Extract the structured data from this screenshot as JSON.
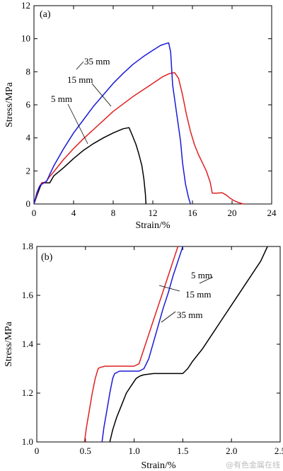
{
  "chart_data": [
    {
      "type": "line",
      "panel_label": "(a)",
      "xlabel": "Strain/%",
      "ylabel": "Stress/MPa",
      "xlim": [
        0,
        24
      ],
      "ylim": [
        0,
        12
      ],
      "xticks": [
        0,
        4,
        8,
        12,
        16,
        20,
        24
      ],
      "yticks": [
        0,
        2,
        4,
        6,
        8,
        10,
        12
      ],
      "grid": false,
      "series": [
        {
          "name": "5 mm",
          "color": "#000000",
          "x": [
            0,
            0.3,
            0.6,
            0.8,
            1.0,
            1.4,
            1.6,
            2.0,
            3.0,
            4.0,
            5.0,
            6.0,
            7.0,
            8.0,
            9.0,
            9.6,
            9.9,
            10.3,
            10.6,
            10.9,
            11.1,
            11.25,
            11.3,
            11.3
          ],
          "y": [
            0,
            0.5,
            1.0,
            1.25,
            1.28,
            1.28,
            1.28,
            1.7,
            2.2,
            2.75,
            3.25,
            3.65,
            4.0,
            4.3,
            4.55,
            4.62,
            4.2,
            3.6,
            3.0,
            2.3,
            1.5,
            0.6,
            0.1,
            0
          ]
        },
        {
          "name": "15 mm",
          "color": "#e02020",
          "x": [
            0,
            0.3,
            0.5,
            0.8,
            1.2,
            1.5,
            2.0,
            3.0,
            4.0,
            5.0,
            6.0,
            7.0,
            8.0,
            9.0,
            10.0,
            11.0,
            12.0,
            13.0,
            13.7,
            14.2,
            14.6,
            15.0,
            15.4,
            15.8,
            16.2,
            16.6,
            17.0,
            17.4,
            17.8,
            18.0,
            18.4,
            19.0,
            19.4,
            19.8,
            20.2,
            20.6,
            21.0,
            21.2
          ],
          "y": [
            0,
            0.6,
            1.0,
            1.3,
            1.31,
            1.6,
            1.95,
            2.7,
            3.35,
            3.95,
            4.5,
            5.05,
            5.6,
            6.05,
            6.5,
            6.9,
            7.3,
            7.7,
            7.9,
            7.95,
            7.6,
            6.6,
            5.4,
            4.4,
            3.6,
            3.0,
            2.5,
            2.0,
            1.3,
            0.65,
            0.65,
            0.68,
            0.55,
            0.35,
            0.2,
            0.1,
            0.02,
            0
          ]
        },
        {
          "name": "35 mm",
          "color": "#1a1ad8",
          "x": [
            0,
            0.3,
            0.6,
            0.8,
            1.0,
            1.3,
            1.6,
            2.0,
            3.0,
            4.0,
            5.0,
            6.0,
            7.0,
            8.0,
            9.0,
            10.0,
            11.0,
            12.0,
            12.8,
            13.3,
            13.6,
            13.8,
            14.0,
            14.4,
            14.8,
            15.0,
            15.3,
            15.6,
            15.8
          ],
          "y": [
            0,
            0.7,
            1.1,
            1.2,
            1.27,
            1.4,
            1.8,
            2.3,
            3.35,
            4.3,
            5.1,
            5.9,
            6.6,
            7.3,
            7.9,
            8.45,
            8.9,
            9.3,
            9.6,
            9.7,
            9.75,
            9.2,
            7.2,
            5.5,
            3.8,
            2.5,
            1.2,
            0.4,
            0
          ]
        }
      ],
      "annotations": [
        {
          "text": "35 mm",
          "series": "35 mm"
        },
        {
          "text": "15 mm",
          "series": "15 mm"
        },
        {
          "text": "5 mm",
          "series": "5 mm"
        }
      ]
    },
    {
      "type": "line",
      "panel_label": "(b)",
      "xlabel": "Strain/%",
      "ylabel": "Stress/MPa",
      "xlim": [
        0,
        2.5
      ],
      "ylim": [
        1.0,
        1.8
      ],
      "xticks": [
        0,
        0.5,
        1.0,
        1.5,
        2.0,
        2.5
      ],
      "xtick_labels": [
        "0",
        "0.5",
        "1.0",
        "1.5",
        "2.0",
        "2.5"
      ],
      "yticks": [
        1.0,
        1.2,
        1.4,
        1.6,
        1.8
      ],
      "ytick_labels": [
        "1.0",
        "1.2",
        "1.4",
        "1.6",
        "1.8"
      ],
      "grid": false,
      "series": [
        {
          "name": "5 mm",
          "color": "#000000",
          "x": [
            0.75,
            0.78,
            0.82,
            0.87,
            0.92,
            0.97,
            1.02,
            1.06,
            1.1,
            1.2,
            1.3,
            1.4,
            1.5,
            1.55,
            1.6,
            1.7,
            1.8,
            1.9,
            2.0,
            2.1,
            2.2,
            2.3,
            2.37
          ],
          "y": [
            1.0,
            1.05,
            1.1,
            1.15,
            1.2,
            1.23,
            1.26,
            1.27,
            1.275,
            1.28,
            1.28,
            1.28,
            1.28,
            1.3,
            1.33,
            1.38,
            1.44,
            1.5,
            1.56,
            1.62,
            1.68,
            1.74,
            1.8
          ]
        },
        {
          "name": "15 mm",
          "color": "#e02020",
          "x": [
            0.49,
            0.51,
            0.54,
            0.57,
            0.6,
            0.63,
            0.65,
            0.7,
            0.8,
            0.9,
            1.0,
            1.05,
            1.1,
            1.15,
            1.2,
            1.25,
            1.3,
            1.35,
            1.4,
            1.45
          ],
          "y": [
            1.0,
            1.06,
            1.13,
            1.2,
            1.26,
            1.3,
            1.305,
            1.31,
            1.31,
            1.31,
            1.31,
            1.32,
            1.38,
            1.44,
            1.5,
            1.56,
            1.62,
            1.68,
            1.74,
            1.8
          ]
        },
        {
          "name": "35 mm",
          "color": "#1a1ad8",
          "x": [
            0.67,
            0.69,
            0.72,
            0.75,
            0.78,
            0.8,
            0.85,
            0.9,
            0.95,
            1.0,
            1.05,
            1.1,
            1.15,
            1.2,
            1.25,
            1.3,
            1.35,
            1.4,
            1.45,
            1.5
          ],
          "y": [
            1.0,
            1.06,
            1.13,
            1.2,
            1.26,
            1.28,
            1.29,
            1.29,
            1.29,
            1.29,
            1.29,
            1.3,
            1.34,
            1.41,
            1.48,
            1.55,
            1.61,
            1.68,
            1.74,
            1.8
          ]
        }
      ],
      "annotations": [
        {
          "text": "5 mm",
          "series": "5 mm"
        },
        {
          "text": "15 mm",
          "series": "15 mm"
        },
        {
          "text": "35 mm",
          "series": "35 mm"
        }
      ]
    }
  ],
  "watermark": "@有色金属在线"
}
